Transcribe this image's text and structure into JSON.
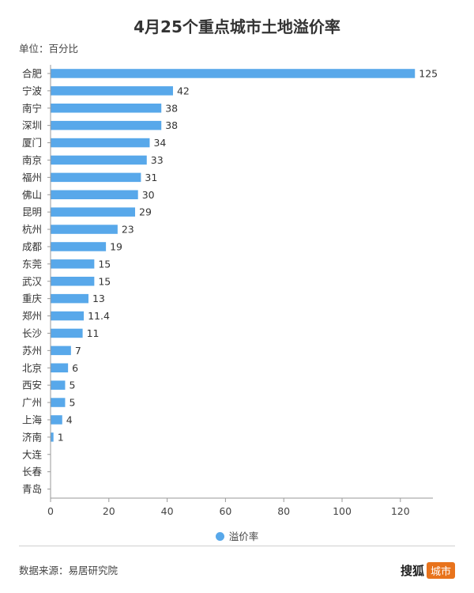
{
  "title": "4月25个重点城市土地溢价率",
  "unit_label": "单位：百分比",
  "legend": {
    "label": "溢价率",
    "color": "#58a8ea"
  },
  "source": "数据来源：易居研究院",
  "brand": {
    "name": "搜狐",
    "badge": "城市"
  },
  "chart_data": {
    "type": "bar",
    "orientation": "horizontal",
    "title": "4月25个重点城市土地溢价率",
    "unit": "单位：百分比",
    "categories": [
      "合肥",
      "宁波",
      "南宁",
      "深圳",
      "厦门",
      "南京",
      "福州",
      "佛山",
      "昆明",
      "杭州",
      "成都",
      "东莞",
      "武汉",
      "重庆",
      "郑州",
      "长沙",
      "苏州",
      "北京",
      "西安",
      "广州",
      "上海",
      "济南",
      "大连",
      "长春",
      "青岛"
    ],
    "series": [
      {
        "name": "溢价率",
        "color": "#58a8ea",
        "values": [
          125,
          42,
          38,
          38,
          34,
          33,
          31,
          30,
          29,
          23,
          19,
          15,
          15,
          13,
          11.4,
          11,
          7,
          6,
          5,
          5,
          4,
          1,
          null,
          null,
          null
        ]
      }
    ],
    "xlim": [
      0,
      130
    ],
    "xticks": [
      0,
      20,
      40,
      60,
      80,
      100,
      120
    ],
    "grid": false,
    "legend_position": "bottom"
  }
}
